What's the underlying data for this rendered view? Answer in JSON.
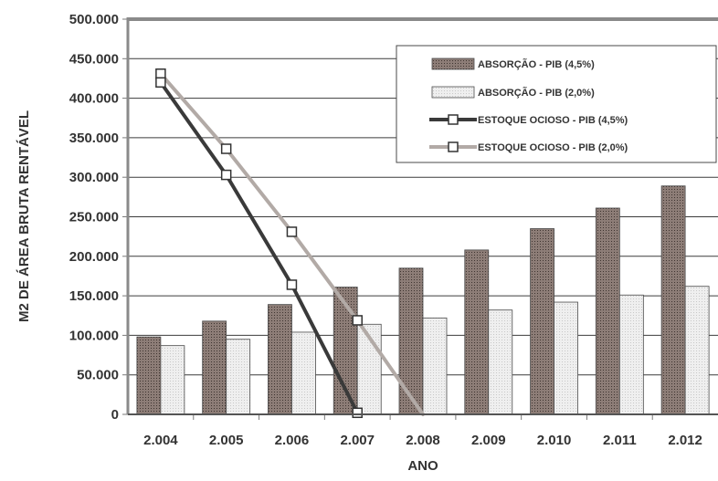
{
  "chart_data": {
    "type": "bar",
    "xlabel": "ANO",
    "ylabel": "M2 DE ÁREA BRUTA RENTÁVEL",
    "ylim": [
      0,
      500000
    ],
    "yticks": [
      0,
      50000,
      100000,
      150000,
      200000,
      250000,
      300000,
      350000,
      400000,
      450000,
      500000
    ],
    "ytick_labels": [
      "0",
      "50.000",
      "100.000",
      "150.000",
      "200.000",
      "250.000",
      "300.000",
      "350.000",
      "400.000",
      "450.000",
      "500.000"
    ],
    "categories": [
      "2.004",
      "2.005",
      "2.006",
      "2.007",
      "2.008",
      "2.009",
      "2.010",
      "2.011",
      "2.012"
    ],
    "grid": true,
    "legend_position": "top-right",
    "series": [
      {
        "name": "ABSORÇÃO - PIB (4,5%)",
        "kind": "bar",
        "color": "#7a6a64",
        "values": [
          98000,
          118000,
          139000,
          161000,
          185000,
          208000,
          235000,
          261000,
          289000
        ]
      },
      {
        "name": "ABSORÇÃO - PIB (2,0%)",
        "kind": "bar",
        "color": "#e6e6e6",
        "values": [
          87000,
          95000,
          104000,
          114000,
          122000,
          132000,
          142000,
          151000,
          162000
        ]
      },
      {
        "name": "ESTOQUE OCIOSO - PIB (4,5%)",
        "kind": "line",
        "color": "#3a3a3a",
        "points": [
          {
            "x": "2.004",
            "y": 420000
          },
          {
            "x": "2.005",
            "y": 303000
          },
          {
            "x": "2.006",
            "y": 164000
          },
          {
            "x": "2.007",
            "y": 2000
          }
        ]
      },
      {
        "name": "ESTOQUE OCIOSO - PIB (2,0%)",
        "kind": "line",
        "color": "#b2aaa6",
        "points": [
          {
            "x": "2.004",
            "y": 431000
          },
          {
            "x": "2.005",
            "y": 336000
          },
          {
            "x": "2.006",
            "y": 231000
          },
          {
            "x": "2.007",
            "y": 119000
          },
          {
            "x": "2.008",
            "y": 0
          }
        ]
      }
    ]
  }
}
